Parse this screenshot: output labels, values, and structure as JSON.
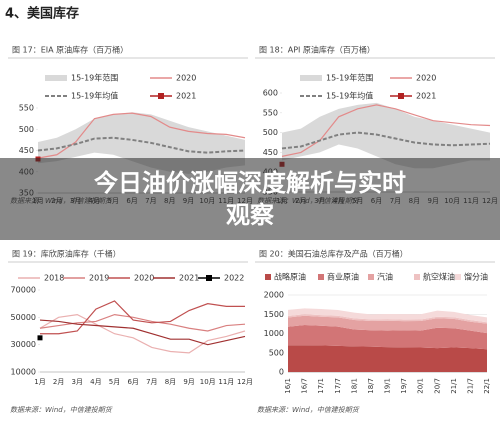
{
  "heading": "4、美国库存",
  "overlay_title": "今日油价涨幅深度解析与实时观察",
  "chart_data": [
    {
      "type": "line",
      "title": "图 17：EIA 原油库存（百万桶）",
      "source": "数据来源：Wind，中信建投期货",
      "categories": [
        "1月",
        "2月",
        "3月",
        "4月",
        "5月",
        "6月",
        "7月",
        "8月",
        "9月",
        "10月",
        "11月",
        "12月"
      ],
      "ylim": [
        350,
        550
      ],
      "yticks": [
        350,
        400,
        450,
        500,
        550
      ],
      "series": [
        {
          "name": "15-19年范围",
          "color": "#d9d9d9",
          "low": [
            420,
            425,
            435,
            445,
            440,
            425,
            410,
            400,
            395,
            400,
            410,
            415
          ],
          "high": [
            470,
            480,
            500,
            525,
            535,
            540,
            535,
            520,
            505,
            495,
            485,
            475
          ]
        },
        {
          "name": "2020",
          "color": "#e38a8a",
          "values": [
            432,
            440,
            470,
            525,
            535,
            538,
            530,
            505,
            495,
            490,
            488,
            480
          ]
        },
        {
          "name": "15-19年均值",
          "color": "#808080",
          "dash": true,
          "values": [
            450,
            455,
            465,
            478,
            480,
            475,
            468,
            458,
            448,
            445,
            448,
            450
          ]
        },
        {
          "name": "2021",
          "color": "#b22222",
          "marker": true,
          "values": [
            430,
            null,
            null,
            null,
            null,
            null,
            null,
            null,
            null,
            null,
            null,
            null
          ]
        }
      ]
    },
    {
      "type": "line",
      "title": "图 18：API 原油库存（百万桶）",
      "source": "数据来源：Wind，中信建投期货",
      "categories": [
        "1月",
        "2月",
        "3月",
        "4月",
        "5月",
        "6月",
        "7月",
        "8月",
        "9月",
        "10月",
        "11月",
        "12月"
      ],
      "ylim": [
        350,
        600
      ],
      "yticks": [
        350,
        400,
        450,
        500,
        550,
        600
      ],
      "series": [
        {
          "name": "15-19年范围",
          "color": "#d9d9d9",
          "low": [
            430,
            440,
            450,
            470,
            460,
            440,
            420,
            410,
            410,
            420,
            430,
            430
          ],
          "high": [
            500,
            510,
            540,
            560,
            570,
            575,
            560,
            540,
            530,
            520,
            510,
            500
          ]
        },
        {
          "name": "2020",
          "color": "#e38a8a",
          "values": [
            440,
            450,
            480,
            540,
            560,
            570,
            560,
            545,
            530,
            525,
            520,
            518
          ]
        },
        {
          "name": "15-19年均值",
          "color": "#808080",
          "dash": true,
          "values": [
            460,
            465,
            480,
            495,
            500,
            495,
            485,
            475,
            470,
            468,
            470,
            472
          ]
        },
        {
          "name": "2021",
          "color": "#b22222",
          "marker": true,
          "values": [
            420,
            null,
            null,
            null,
            null,
            null,
            null,
            null,
            null,
            null,
            null,
            null
          ]
        }
      ]
    },
    {
      "type": "line",
      "title": "图 19：库欣原油库存（千桶）",
      "source": "数据来源：Wind，中信建投期货",
      "categories": [
        "1月",
        "2月",
        "3月",
        "4月",
        "5月",
        "6月",
        "7月",
        "8月",
        "9月",
        "10月",
        "11月",
        "12月"
      ],
      "ylim": [
        10000,
        70000
      ],
      "yticks": [
        10000,
        30000,
        50000,
        70000
      ],
      "series": [
        {
          "name": "2018",
          "color": "#eab0b0",
          "values": [
            42000,
            50000,
            52000,
            45000,
            38000,
            35000,
            28000,
            25000,
            24000,
            33000,
            36000,
            40000
          ]
        },
        {
          "name": "2019",
          "color": "#d98080",
          "values": [
            42000,
            44000,
            46000,
            47000,
            52000,
            50000,
            47000,
            45000,
            42000,
            40000,
            44000,
            45000
          ]
        },
        {
          "name": "2020",
          "color": "#c05050",
          "values": [
            38000,
            38000,
            40000,
            56000,
            62000,
            48000,
            46000,
            47000,
            55000,
            60000,
            58000,
            58000
          ]
        },
        {
          "name": "2021",
          "color": "#a03030",
          "values": [
            48000,
            47000,
            45000,
            44000,
            43000,
            42000,
            38000,
            34000,
            34000,
            30000,
            33000,
            36000
          ]
        },
        {
          "name": "2022",
          "color": "#000000",
          "marker": true,
          "values": [
            35000,
            null,
            null,
            null,
            null,
            null,
            null,
            null,
            null,
            null,
            null,
            null
          ]
        }
      ]
    },
    {
      "type": "area",
      "title": "图 20：美国石油总库存及产品（百万桶）",
      "source": "数据来源：Wind，中信建投期货",
      "categories": [
        "16/1",
        "16/7",
        "17/1",
        "17/7",
        "18/1",
        "18/7",
        "19/1",
        "19/7",
        "20/1",
        "20/7",
        "21/1",
        "21/7",
        "22/1"
      ],
      "ylim": [
        0,
        2000
      ],
      "yticks": [
        0,
        500,
        1000,
        1500,
        2000
      ],
      "grid": true,
      "series": [
        {
          "name": "战略原油",
          "color": "#b94a48",
          "values": [
            695,
            695,
            690,
            680,
            665,
            660,
            645,
            640,
            635,
            620,
            640,
            620,
            590
          ]
        },
        {
          "name": "商业原油",
          "color": "#d27576",
          "values": [
            480,
            525,
            510,
            500,
            440,
            425,
            430,
            445,
            440,
            530,
            495,
            455,
            420
          ]
        },
        {
          "name": "汽油",
          "color": "#e4a2a2",
          "values": [
            240,
            240,
            235,
            240,
            245,
            240,
            255,
            235,
            250,
            245,
            245,
            230,
            245
          ]
        },
        {
          "name": "航空煤油",
          "color": "#eec2c2",
          "values": [
            40,
            42,
            42,
            42,
            42,
            42,
            42,
            42,
            40,
            40,
            42,
            42,
            38
          ]
        },
        {
          "name": "馏分油",
          "color": "#f5dada",
          "values": [
            160,
            150,
            160,
            150,
            150,
            130,
            135,
            140,
            135,
            160,
            140,
            135,
            125
          ]
        }
      ]
    }
  ]
}
